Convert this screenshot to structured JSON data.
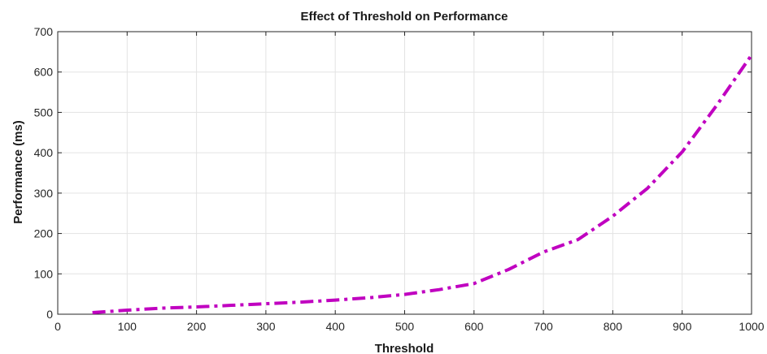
{
  "chart_data": {
    "type": "line",
    "title": "Effect of Threshold on Performance",
    "xlabel": "Threshold",
    "ylabel": "Performance (ms)",
    "xlim": [
      0,
      1000
    ],
    "ylim": [
      0,
      700
    ],
    "xticks": [
      0,
      100,
      200,
      300,
      400,
      500,
      600,
      700,
      800,
      900,
      1000
    ],
    "yticks": [
      0,
      100,
      200,
      300,
      400,
      500,
      600,
      700
    ],
    "grid": true,
    "legend": null,
    "series": [
      {
        "color": "#c000c0",
        "line_style": "dash-dot",
        "x": [
          50,
          100,
          150,
          200,
          250,
          300,
          350,
          400,
          450,
          500,
          550,
          600,
          650,
          700,
          750,
          800,
          850,
          900,
          950,
          1000
        ],
        "y": [
          4,
          10,
          15,
          18,
          22,
          26,
          30,
          35,
          41,
          49,
          61,
          76,
          111,
          154,
          185,
          243,
          312,
          402,
          518,
          642
        ]
      }
    ]
  }
}
